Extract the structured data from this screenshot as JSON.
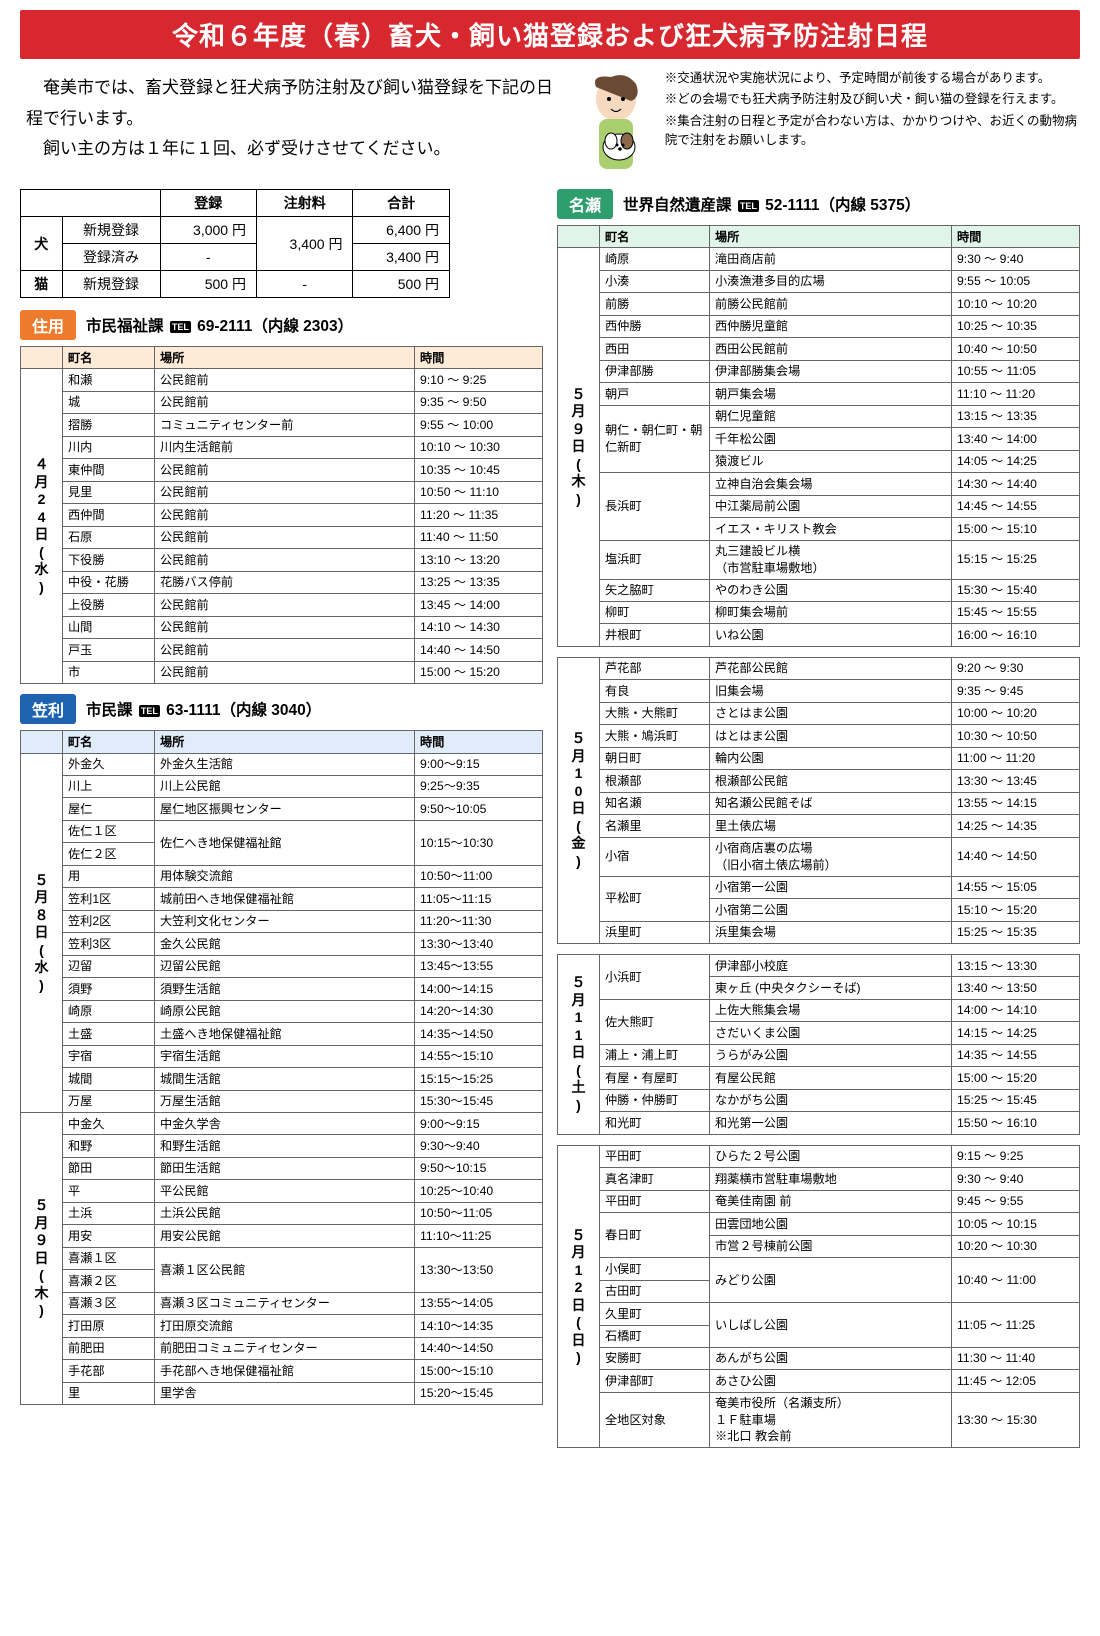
{
  "title": "令和６年度（春）畜犬・飼い猫登録および狂犬病予防注射日程",
  "intro": "　奄美市では、畜犬登録と狂犬病予防注射及び飼い猫登録を下記の日程で行います。\n　飼い主の方は１年に１回、必ず受けさせてください。",
  "notes": [
    "※交通状況や実施状況により、予定時間が前後する場合があります。",
    "※どの会場でも狂犬病予防注射及び飼い犬・飼い猫の登録を行えます。",
    "※集合注射の日程と予定が合わない方は、かかりつけや、お近くの動物病院で注射をお願いします。"
  ],
  "fee": {
    "headers": [
      "",
      "登録",
      "注射料",
      "合計"
    ],
    "rows": [
      {
        "animal": "犬",
        "label": "新規登録",
        "reg": "3,000 円",
        "inj": "3,400 円",
        "total": "6,400 円"
      },
      {
        "animal": "",
        "label": "登録済み",
        "reg": "-",
        "inj": "",
        "total": "3,400 円"
      },
      {
        "animal": "猫",
        "label": "新規登録",
        "reg": "500 円",
        "inj": "-",
        "total": "500 円"
      }
    ]
  },
  "colhead": {
    "town": "町名",
    "place": "場所",
    "time": "時間"
  },
  "sumiyou": {
    "badge": "住用",
    "dept": "市民福祉課",
    "phone": "69-2111（内線 2303）",
    "date": "４月24日(水)",
    "rows": [
      [
        "和瀬",
        "公民館前",
        "9:10 ～ 9:25"
      ],
      [
        "城",
        "公民館前",
        "9:35 ～ 9:50"
      ],
      [
        "摺勝",
        "コミュニティセンター前",
        "9:55 ～ 10:00"
      ],
      [
        "川内",
        "川内生活館前",
        "10:10 ～ 10:30"
      ],
      [
        "東仲間",
        "公民館前",
        "10:35 ～ 10:45"
      ],
      [
        "見里",
        "公民館前",
        "10:50 ～ 11:10"
      ],
      [
        "西仲間",
        "公民館前",
        "11:20 ～ 11:35"
      ],
      [
        "石原",
        "公民館前",
        "11:40 ～ 11:50"
      ],
      [
        "下役勝",
        "公民館前",
        "13:10 ～ 13:20"
      ],
      [
        "中役・花勝",
        "花勝バス停前",
        "13:25 ～ 13:35"
      ],
      [
        "上役勝",
        "公民館前",
        "13:45 ～ 14:00"
      ],
      [
        "山間",
        "公民館前",
        "14:10 ～ 14:30"
      ],
      [
        "戸玉",
        "公民館前",
        "14:40 ～ 14:50"
      ],
      [
        "市",
        "公民館前",
        "15:00 ～ 15:20"
      ]
    ]
  },
  "kasari": {
    "badge": "笠利",
    "dept": "市民課",
    "phone": "63-1111（内線 3040）",
    "date1": "５月８日(水)",
    "rows1": [
      [
        "外金久",
        "外金久生活館",
        "9:00～9:15",
        1,
        1
      ],
      [
        "川上",
        "川上公民館",
        "9:25～9:35",
        1,
        1
      ],
      [
        "屋仁",
        "屋仁地区振興センター",
        "9:50～10:05",
        1,
        1
      ],
      [
        "佐仁１区",
        "佐仁へき地保健福祉館",
        "10:15～10:30",
        1,
        2
      ],
      [
        "佐仁２区",
        "",
        "",
        1,
        0
      ],
      [
        "用",
        "用体験交流館",
        "10:50～11:00",
        1,
        1
      ],
      [
        "笠利1区",
        "城前田へき地保健福祉館",
        "11:05～11:15",
        1,
        1
      ],
      [
        "笠利2区",
        "大笠利文化センター",
        "11:20～11:30",
        1,
        1
      ],
      [
        "笠利3区",
        "金久公民館",
        "13:30～13:40",
        1,
        1
      ],
      [
        "辺留",
        "辺留公民館",
        "13:45～13:55",
        1,
        1
      ],
      [
        "須野",
        "須野生活館",
        "14:00～14:15",
        1,
        1
      ],
      [
        "崎原",
        "崎原公民館",
        "14:20～14:30",
        1,
        1
      ],
      [
        "土盛",
        "土盛へき地保健福祉館",
        "14:35～14:50",
        1,
        1
      ],
      [
        "宇宿",
        "宇宿生活館",
        "14:55～15:10",
        1,
        1
      ],
      [
        "城間",
        "城間生活館",
        "15:15～15:25",
        1,
        1
      ],
      [
        "万屋",
        "万屋生活館",
        "15:30～15:45",
        1,
        1
      ]
    ],
    "date2": "５月９日(木)",
    "rows2": [
      [
        "中金久",
        "中金久学舎",
        "9:00～9:15",
        1,
        1
      ],
      [
        "和野",
        "和野生活館",
        "9:30～9:40",
        1,
        1
      ],
      [
        "節田",
        "節田生活館",
        "9:50～10:15",
        1,
        1
      ],
      [
        "平",
        "平公民館",
        "10:25～10:40",
        1,
        1
      ],
      [
        "土浜",
        "土浜公民館",
        "10:50～11:05",
        1,
        1
      ],
      [
        "用安",
        "用安公民館",
        "11:10～11:25",
        1,
        1
      ],
      [
        "喜瀬１区",
        "喜瀬１区公民館",
        "13:30～13:50",
        1,
        2
      ],
      [
        "喜瀬２区",
        "",
        "",
        1,
        0
      ],
      [
        "喜瀬３区",
        "喜瀬３区コミュニティセンター",
        "13:55～14:05",
        1,
        1
      ],
      [
        "打田原",
        "打田原交流館",
        "14:10～14:35",
        1,
        1
      ],
      [
        "前肥田",
        "前肥田コミュニティセンター",
        "14:40～14:50",
        1,
        1
      ],
      [
        "手花部",
        "手花部へき地保健福祉館",
        "15:00～15:10",
        1,
        1
      ],
      [
        "里",
        "里学舎",
        "15:20～15:45",
        1,
        1
      ]
    ]
  },
  "naze": {
    "badge": "名瀬",
    "dept": "世界自然遺産課",
    "phone": "52-1111（内線 5375）",
    "date1": "５月９日(木)",
    "rows1": [
      [
        "崎原",
        "滝田商店前",
        "9:30 ～ 9:40",
        1,
        1
      ],
      [
        "小湊",
        "小湊漁港多目的広場",
        "9:55 ～ 10:05",
        1,
        1
      ],
      [
        "前勝",
        "前勝公民館前",
        "10:10 ～ 10:20",
        1,
        1
      ],
      [
        "西仲勝",
        "西仲勝児童館",
        "10:25 ～ 10:35",
        1,
        1
      ],
      [
        "西田",
        "西田公民館前",
        "10:40 ～ 10:50",
        1,
        1
      ],
      [
        "伊津部勝",
        "伊津部勝集会場",
        "10:55 ～ 11:05",
        1,
        1
      ],
      [
        "朝戸",
        "朝戸集会場",
        "11:10 ～ 11:20",
        1,
        1
      ],
      [
        "朝仁・朝仁町・朝仁新町",
        "朝仁児童館",
        "13:15 ～ 13:35",
        3,
        1
      ],
      [
        "",
        "千年松公園",
        "13:40 ～ 14:00",
        0,
        1
      ],
      [
        "",
        "猿渡ビル",
        "14:05 ～ 14:25",
        0,
        1
      ],
      [
        "長浜町",
        "立神自治会集会場",
        "14:30 ～ 14:40",
        3,
        1
      ],
      [
        "",
        "中江薬局前公園",
        "14:45 ～ 14:55",
        0,
        1
      ],
      [
        "",
        "イエス・キリスト教会",
        "15:00 ～ 15:10",
        0,
        1
      ],
      [
        "塩浜町",
        "丸三建設ビル横\n（市営駐車場敷地）",
        "15:15 ～ 15:25",
        1,
        1
      ],
      [
        "矢之脇町",
        "やのわき公園",
        "15:30 ～ 15:40",
        1,
        1
      ],
      [
        "柳町",
        "柳町集会場前",
        "15:45 ～ 15:55",
        1,
        1
      ],
      [
        "井根町",
        "いね公園",
        "16:00 ～ 16:10",
        1,
        1
      ]
    ],
    "date2": "５月10日(金)",
    "rows2": [
      [
        "芦花部",
        "芦花部公民館",
        "9:20 ～ 9:30",
        1,
        1
      ],
      [
        "有良",
        "旧集会場",
        "9:35 ～ 9:45",
        1,
        1
      ],
      [
        "大熊・大熊町",
        "さとはま公園",
        "10:00 ～ 10:20",
        1,
        1
      ],
      [
        "大熊・鳩浜町",
        "はとはま公園",
        "10:30 ～ 10:50",
        1,
        1
      ],
      [
        "朝日町",
        "輪内公園",
        "11:00 ～ 11:20",
        1,
        1
      ],
      [
        "根瀬部",
        "根瀬部公民館",
        "13:30 ～ 13:45",
        1,
        1
      ],
      [
        "知名瀬",
        "知名瀬公民館そば",
        "13:55 ～ 14:15",
        1,
        1
      ],
      [
        "名瀬里",
        "里土俵広場",
        "14:25 ～ 14:35",
        1,
        1
      ],
      [
        "小宿",
        "小宿商店裏の広場\n（旧小宿土俵広場前）",
        "14:40 ～ 14:50",
        1,
        1
      ],
      [
        "平松町",
        "小宿第一公園",
        "14:55 ～ 15:05",
        2,
        1
      ],
      [
        "",
        "小宿第二公園",
        "15:10 ～ 15:20",
        0,
        1
      ],
      [
        "浜里町",
        "浜里集会場",
        "15:25 ～ 15:35",
        1,
        1
      ]
    ],
    "date3": "５月11日(土)",
    "rows3": [
      [
        "小浜町",
        "伊津部小校庭",
        "13:15 ～ 13:30",
        2,
        1
      ],
      [
        "",
        "東ヶ丘 (中央タクシーそば)",
        "13:40 ～ 13:50",
        0,
        1
      ],
      [
        "佐大熊町",
        "上佐大熊集会場",
        "14:00 ～ 14:10",
        2,
        1
      ],
      [
        "",
        "さだいくま公園",
        "14:15 ～ 14:25",
        0,
        1
      ],
      [
        "浦上・浦上町",
        "うらがみ公園",
        "14:35 ～ 14:55",
        1,
        1
      ],
      [
        "有屋・有屋町",
        "有屋公民館",
        "15:00 ～ 15:20",
        1,
        1
      ],
      [
        "仲勝・仲勝町",
        "なかがち公園",
        "15:25 ～ 15:45",
        1,
        1
      ],
      [
        "和光町",
        "和光第一公園",
        "15:50 ～ 16:10",
        1,
        1
      ]
    ],
    "date4": "５月12日(日)",
    "rows4": [
      [
        "平田町",
        "ひらた２号公園",
        "9:15 ～ 9:25",
        1,
        1
      ],
      [
        "真名津町",
        "翔薬横市営駐車場敷地",
        "9:30 ～ 9:40",
        1,
        1
      ],
      [
        "平田町",
        "奄美佳南園 前",
        "9:45 ～ 9:55",
        1,
        1
      ],
      [
        "春日町",
        "田雲団地公園",
        "10:05 ～ 10:15",
        2,
        1
      ],
      [
        "",
        "市営２号棟前公園",
        "10:20 ～ 10:30",
        0,
        1
      ],
      [
        "小俣町",
        "みどり公園",
        "10:40 ～ 11:00",
        1,
        2
      ],
      [
        "古田町",
        "",
        "",
        1,
        0
      ],
      [
        "久里町",
        "いしばし公園",
        "11:05 ～ 11:25",
        1,
        2
      ],
      [
        "石橋町",
        "",
        "",
        1,
        0
      ],
      [
        "安勝町",
        "あんがち公園",
        "11:30 ～ 11:40",
        1,
        1
      ],
      [
        "伊津部町",
        "あさひ公園",
        "11:45 ～ 12:05",
        1,
        1
      ],
      [
        "全地区対象",
        "奄美市役所（名瀬支所）\n１Ｆ駐車場\n※北口 教会前",
        "13:30 ～ 15:30",
        1,
        1
      ]
    ]
  }
}
